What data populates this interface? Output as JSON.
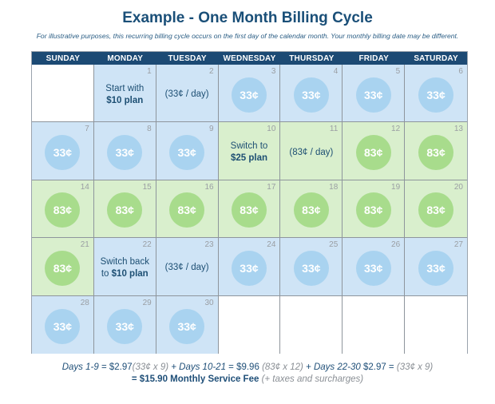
{
  "title": "Example - One Month Billing Cycle",
  "subtitle": "For illustrative purposes, this recurring billing cycle occurs on the first day of the calendar month. Your monthly billing date may be different.",
  "weekdays": [
    "SUNDAY",
    "MONDAY",
    "TUESDAY",
    "WEDNESDAY",
    "THURSDAY",
    "FRIDAY",
    "SATURDAY"
  ],
  "colors": {
    "header": "#1c4a74",
    "blue_cell": "#cfe4f6",
    "green_cell": "#d9efcd",
    "blue_coin": "#a9d3f0",
    "green_coin": "#a8dc8c"
  },
  "cells": [
    {
      "day": "",
      "kind": "empty"
    },
    {
      "day": "1",
      "kind": "blue",
      "note_line1": "Start with",
      "note_line2": "$10 plan"
    },
    {
      "day": "2",
      "kind": "blue",
      "note_line1": "(33¢ / day)"
    },
    {
      "day": "3",
      "kind": "blue",
      "coin": "33¢"
    },
    {
      "day": "4",
      "kind": "blue",
      "coin": "33¢"
    },
    {
      "day": "5",
      "kind": "blue",
      "coin": "33¢"
    },
    {
      "day": "6",
      "kind": "blue",
      "coin": "33¢"
    },
    {
      "day": "7",
      "kind": "blue",
      "coin": "33¢"
    },
    {
      "day": "8",
      "kind": "blue",
      "coin": "33¢"
    },
    {
      "day": "9",
      "kind": "blue",
      "coin": "33¢"
    },
    {
      "day": "10",
      "kind": "green",
      "note_line1": "Switch to",
      "note_line2": "$25 plan"
    },
    {
      "day": "11",
      "kind": "green",
      "note_line1": "(83¢ / day)"
    },
    {
      "day": "12",
      "kind": "green",
      "coin": "83¢"
    },
    {
      "day": "13",
      "kind": "green",
      "coin": "83¢"
    },
    {
      "day": "14",
      "kind": "green",
      "coin": "83¢"
    },
    {
      "day": "15",
      "kind": "green",
      "coin": "83¢"
    },
    {
      "day": "16",
      "kind": "green",
      "coin": "83¢"
    },
    {
      "day": "17",
      "kind": "green",
      "coin": "83¢"
    },
    {
      "day": "18",
      "kind": "green",
      "coin": "83¢"
    },
    {
      "day": "19",
      "kind": "green",
      "coin": "83¢"
    },
    {
      "day": "20",
      "kind": "green",
      "coin": "83¢"
    },
    {
      "day": "21",
      "kind": "green",
      "coin": "83¢"
    },
    {
      "day": "22",
      "kind": "blue",
      "note_line1": "Switch back",
      "note_pre2": "to ",
      "note_line2": "$10 plan"
    },
    {
      "day": "23",
      "kind": "blue",
      "note_line1": "(33¢ / day)"
    },
    {
      "day": "24",
      "kind": "blue",
      "coin": "33¢"
    },
    {
      "day": "25",
      "kind": "blue",
      "coin": "33¢"
    },
    {
      "day": "26",
      "kind": "blue",
      "coin": "33¢"
    },
    {
      "day": "27",
      "kind": "blue",
      "coin": "33¢"
    },
    {
      "day": "28",
      "kind": "blue",
      "coin": "33¢"
    },
    {
      "day": "29",
      "kind": "blue",
      "coin": "33¢"
    },
    {
      "day": "30",
      "kind": "blue",
      "coin": "33¢"
    },
    {
      "day": "",
      "kind": "empty"
    },
    {
      "day": "",
      "kind": "empty"
    },
    {
      "day": "",
      "kind": "empty"
    },
    {
      "day": "",
      "kind": "empty"
    }
  ],
  "footer": {
    "seg1_label": "Days 1-9",
    "seg1_value": " = $2.97",
    "seg1_calc": "(33¢ x 9)",
    "seg2_label": " + Days 10-21",
    "seg2_value": " = $9.96 ",
    "seg2_calc": "(83¢ x 12)",
    "seg3_label": "  + Days 22-30",
    "seg3_value": " $2.97 = ",
    "seg3_calc": "(33¢ x 9)",
    "total": "= $15.90 Monthly Service Fee",
    "total_note": " (+ taxes and surcharges)"
  }
}
